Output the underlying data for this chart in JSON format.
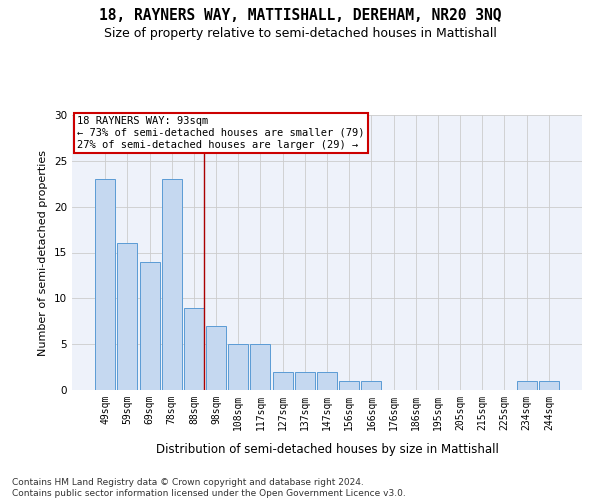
{
  "title": "18, RAYNERS WAY, MATTISHALL, DEREHAM, NR20 3NQ",
  "subtitle": "Size of property relative to semi-detached houses in Mattishall",
  "xlabel": "Distribution of semi-detached houses by size in Mattishall",
  "ylabel": "Number of semi-detached properties",
  "categories": [
    "49sqm",
    "59sqm",
    "69sqm",
    "78sqm",
    "88sqm",
    "98sqm",
    "108sqm",
    "117sqm",
    "127sqm",
    "137sqm",
    "147sqm",
    "156sqm",
    "166sqm",
    "176sqm",
    "186sqm",
    "195sqm",
    "205sqm",
    "215sqm",
    "225sqm",
    "234sqm",
    "244sqm"
  ],
  "values": [
    23,
    16,
    14,
    23,
    9,
    7,
    5,
    5,
    2,
    2,
    2,
    1,
    1,
    0,
    0,
    0,
    0,
    0,
    0,
    1,
    1
  ],
  "bar_color": "#c5d8f0",
  "bar_edge_color": "#5b9bd5",
  "highlight_line_index": 4,
  "highlight_line_color": "#aa0000",
  "annotation_text": "18 RAYNERS WAY: 93sqm\n← 73% of semi-detached houses are smaller (79)\n27% of semi-detached houses are larger (29) →",
  "annotation_box_color": "#ffffff",
  "annotation_box_edge_color": "#cc0000",
  "ylim": [
    0,
    30
  ],
  "yticks": [
    0,
    5,
    10,
    15,
    20,
    25,
    30
  ],
  "grid_color": "#cccccc",
  "bg_color": "#eef2fa",
  "footer": "Contains HM Land Registry data © Crown copyright and database right 2024.\nContains public sector information licensed under the Open Government Licence v3.0.",
  "title_fontsize": 10.5,
  "subtitle_fontsize": 9,
  "xlabel_fontsize": 8.5,
  "ylabel_fontsize": 8,
  "tick_fontsize": 7,
  "annotation_fontsize": 7.5,
  "footer_fontsize": 6.5
}
